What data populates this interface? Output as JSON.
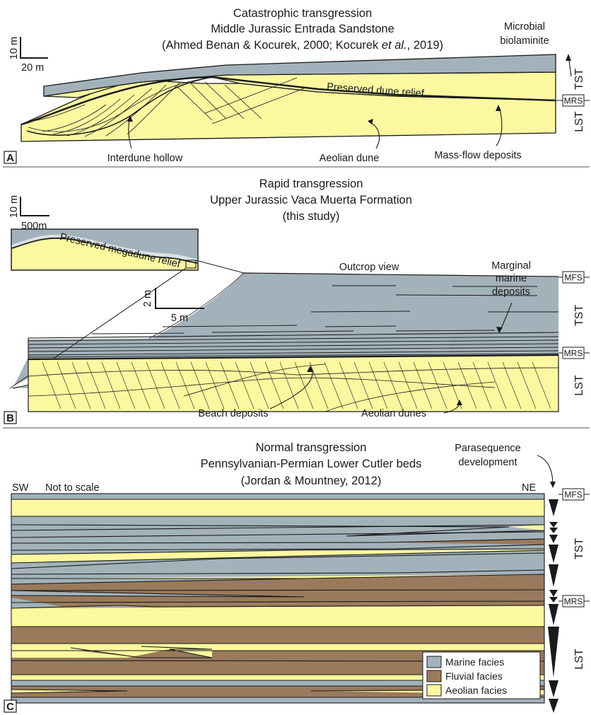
{
  "colors": {
    "marine": "#a3b2ba",
    "fluvial": "#9a7a5c",
    "aeolian": "#fbf8a0",
    "line": "#1a1a1a"
  },
  "panel_a": {
    "letter": "A",
    "title_1": "Catastrophic transgression",
    "title_2": "Middle Jurassic Entrada Sandstone",
    "title_3_prefix": "(Ahmed Benan & Kocurek, 2000; Kocurek ",
    "title_3_italic": "et al.",
    "title_3_suffix": ", 2019)",
    "scale_v": "10 m",
    "scale_h": "20 m",
    "labels": {
      "microbial_1": "Microbial",
      "microbial_2": "biolaminite",
      "preserved": "Preserved dune relief",
      "interdune": "Interdune hollow",
      "aeolian_dune": "Aeolian dune",
      "mass_flow": "Mass-flow deposits"
    },
    "surfaces": [
      "MRS"
    ],
    "tracts": [
      "TST",
      "LST"
    ]
  },
  "panel_b": {
    "letter": "B",
    "title_1": "Rapid transgression",
    "title_2": "Upper Jurassic Vaca Muerta Formation",
    "title_3": "(this study)",
    "scale_v": "10 m",
    "scale_h": "500m",
    "inset_label": "Preserved megadune relief",
    "outcrop_scale_v": "2 m",
    "outcrop_scale_h": "5 m",
    "labels": {
      "outcrop": "Outcrop view",
      "marginal_1": "Marginal",
      "marginal_2": "marine",
      "marginal_3": "deposits",
      "beach": "Beach deposits",
      "aeolian_dunes": "Aeolian dunes"
    },
    "surfaces": [
      "MFS",
      "MRS"
    ],
    "tracts": [
      "TST",
      "LST"
    ]
  },
  "panel_c": {
    "letter": "C",
    "title_1": "Normal transgression",
    "title_2": "Pennsylvanian-Permian Lower Cutler beds",
    "title_3": "(Jordan & Mountney, 2012)",
    "sw": "SW",
    "ne": "NE",
    "not_to_scale": "Not to scale",
    "parasequence_1": "Parasequence",
    "parasequence_2": "development",
    "surfaces": [
      "MFS",
      "MRS"
    ],
    "tracts": [
      "TST",
      "LST"
    ],
    "legend": [
      {
        "label": "Marine facies",
        "color_key": "marine"
      },
      {
        "label": "Fluvial facies",
        "color_key": "fluvial"
      },
      {
        "label": "Aeolian facies",
        "color_key": "aeolian"
      }
    ]
  }
}
